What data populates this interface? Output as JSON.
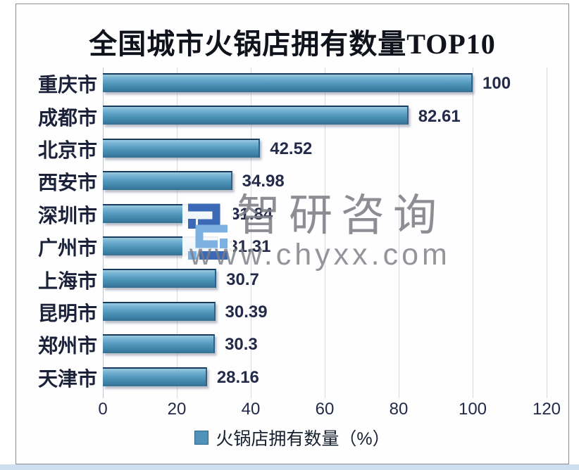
{
  "chart_data": {
    "type": "bar",
    "orientation": "horizontal",
    "title": "全国城市火锅店拥有数量TOP10",
    "categories": [
      "重庆市",
      "成都市",
      "北京市",
      "西安市",
      "深圳市",
      "广州市",
      "上海市",
      "昆明市",
      "郑州市",
      "天津市"
    ],
    "values": [
      100,
      82.61,
      42.52,
      34.98,
      31.84,
      31.31,
      30.7,
      30.39,
      30.3,
      28.16
    ],
    "value_labels": [
      "100",
      "82.61",
      "42.52",
      "34.98",
      "31.84",
      "31.31",
      "30.7",
      "30.39",
      "30.3",
      "28.16"
    ],
    "xlabel": "",
    "ylabel": "",
    "xlim": [
      0,
      120
    ],
    "x_ticks": [
      "0",
      "20",
      "40",
      "60",
      "80",
      "100",
      "120"
    ],
    "grid": true,
    "bar_color": "#4f94b8",
    "legend": {
      "label": "火锅店拥有数量（%）",
      "swatch_color": "#4f94b8",
      "position": "bottom"
    }
  },
  "watermark": {
    "brand": "智研咨询",
    "url": "www.chyxx.com",
    "logo": "zhiyan-logo",
    "text_color": "#7d7d85",
    "logo_dark_blue": "#3b69b5",
    "logo_light_blue": "#7cb1e2"
  },
  "page": {
    "frame_border_color": "#878c96",
    "bottom_strip_color": "#cddfee",
    "gridline_color": "#d7d9dd",
    "text_color": "#242a49"
  }
}
